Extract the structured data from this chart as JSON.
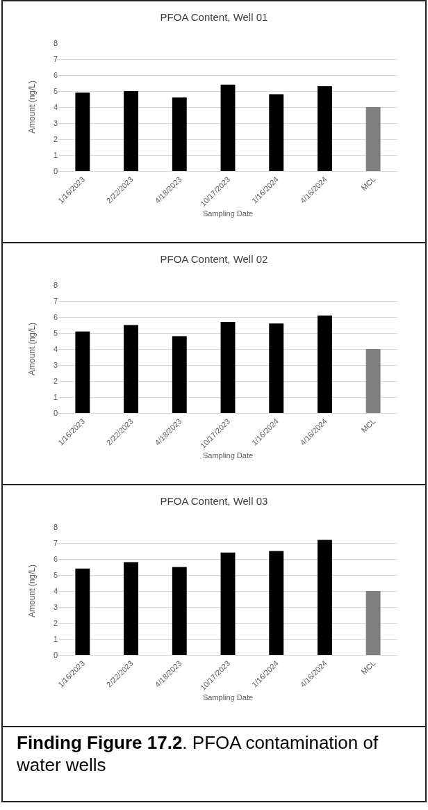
{
  "chart_data": [
    {
      "type": "bar",
      "title": "PFOA Content, Well 01",
      "xlabel": "Sampling Date",
      "ylabel": "Amount (ng/L)",
      "categories": [
        "1/16/2023",
        "2/22/2023",
        "4/18/2023",
        "10/17/2023",
        "1/16/2024",
        "4/16/2024",
        "MCL"
      ],
      "values": [
        4.9,
        5.0,
        4.6,
        5.4,
        4.8,
        5.3,
        4
      ],
      "colors": [
        "#000000",
        "#000000",
        "#000000",
        "#000000",
        "#000000",
        "#000000",
        "#808080"
      ],
      "ylim": [
        0,
        8
      ],
      "yticks": [
        0,
        1,
        2,
        3,
        4,
        5,
        6,
        7,
        8
      ],
      "grid": "y"
    },
    {
      "type": "bar",
      "title": "PFOA Content, Well 02",
      "xlabel": "Sampling Date",
      "ylabel": "Amount (ng/L)",
      "categories": [
        "1/16/2023",
        "2/22/2023",
        "4/18/2023",
        "10/17/2023",
        "1/16/2024",
        "4/16/2024",
        "MCL"
      ],
      "values": [
        5.1,
        5.5,
        4.8,
        5.7,
        5.6,
        6.1,
        4
      ],
      "colors": [
        "#000000",
        "#000000",
        "#000000",
        "#000000",
        "#000000",
        "#000000",
        "#808080"
      ],
      "ylim": [
        0,
        8
      ],
      "yticks": [
        0,
        1,
        2,
        3,
        4,
        5,
        6,
        7,
        8
      ],
      "grid": "y"
    },
    {
      "type": "bar",
      "title": "PFOA Content, Well 03",
      "xlabel": "Sampling Date",
      "ylabel": "Amount (ng/L)",
      "categories": [
        "1/16/2023",
        "2/22/2023",
        "4/18/2023",
        "10/17/2023",
        "1/16/2024",
        "4/16/2024",
        "MCL"
      ],
      "values": [
        5.4,
        5.8,
        5.5,
        6.4,
        6.5,
        7.2,
        4
      ],
      "colors": [
        "#000000",
        "#000000",
        "#000000",
        "#000000",
        "#000000",
        "#000000",
        "#808080"
      ],
      "ylim": [
        0,
        8
      ],
      "yticks": [
        0,
        1,
        2,
        3,
        4,
        5,
        6,
        7,
        8
      ],
      "grid": "y"
    },
    {
      "type": "other",
      "title": "Finding Figure 17.2",
      "subtitle": ". PFOA contamination of water wells"
    }
  ]
}
